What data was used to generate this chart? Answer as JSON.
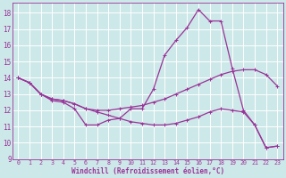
{
  "background_color": "#cde8e8",
  "grid_color": "#b0d8d8",
  "line_color": "#993399",
  "xlabel": "Windchill (Refroidissement éolien,°C)",
  "xlim": [
    -0.5,
    23.5
  ],
  "ylim": [
    9,
    18.6
  ],
  "yticks": [
    9,
    10,
    11,
    12,
    13,
    14,
    15,
    16,
    17,
    18
  ],
  "xticks": [
    0,
    1,
    2,
    3,
    4,
    5,
    6,
    7,
    8,
    9,
    10,
    11,
    12,
    13,
    14,
    15,
    16,
    17,
    18,
    19,
    20,
    21,
    22,
    23
  ],
  "line1_x": [
    0,
    1,
    2,
    3,
    4,
    5,
    6,
    7,
    8,
    9,
    10,
    11,
    12,
    13,
    14,
    15,
    16,
    17,
    18,
    19,
    20,
    21,
    22,
    23
  ],
  "line1_y": [
    14.0,
    13.7,
    13.0,
    12.6,
    12.5,
    12.1,
    11.1,
    11.1,
    11.4,
    11.5,
    12.1,
    12.1,
    13.3,
    15.4,
    16.3,
    17.1,
    18.2,
    17.5,
    17.5,
    14.6,
    12.0,
    11.1,
    9.7,
    9.8
  ],
  "line2_x": [
    0,
    1,
    2,
    3,
    4,
    5,
    6,
    7,
    8,
    9,
    10,
    11,
    12,
    13,
    14,
    15,
    16,
    17,
    18,
    19,
    20,
    21,
    22,
    23
  ],
  "line2_y": [
    14.0,
    13.7,
    13.0,
    12.7,
    12.6,
    12.4,
    12.1,
    12.0,
    12.0,
    12.1,
    12.2,
    12.3,
    12.5,
    12.7,
    13.0,
    13.3,
    13.6,
    13.9,
    14.2,
    14.4,
    14.5,
    14.5,
    14.2,
    13.5
  ],
  "line3_x": [
    0,
    1,
    2,
    3,
    4,
    5,
    6,
    7,
    8,
    9,
    10,
    11,
    12,
    13,
    14,
    15,
    16,
    17,
    18,
    19,
    20,
    21,
    22,
    23
  ],
  "line3_y": [
    14.0,
    13.7,
    13.0,
    12.7,
    12.6,
    12.4,
    12.1,
    11.9,
    11.7,
    11.5,
    11.3,
    11.2,
    11.1,
    11.1,
    11.2,
    11.4,
    11.6,
    11.9,
    12.1,
    12.0,
    11.9,
    11.1,
    9.7,
    9.8
  ]
}
